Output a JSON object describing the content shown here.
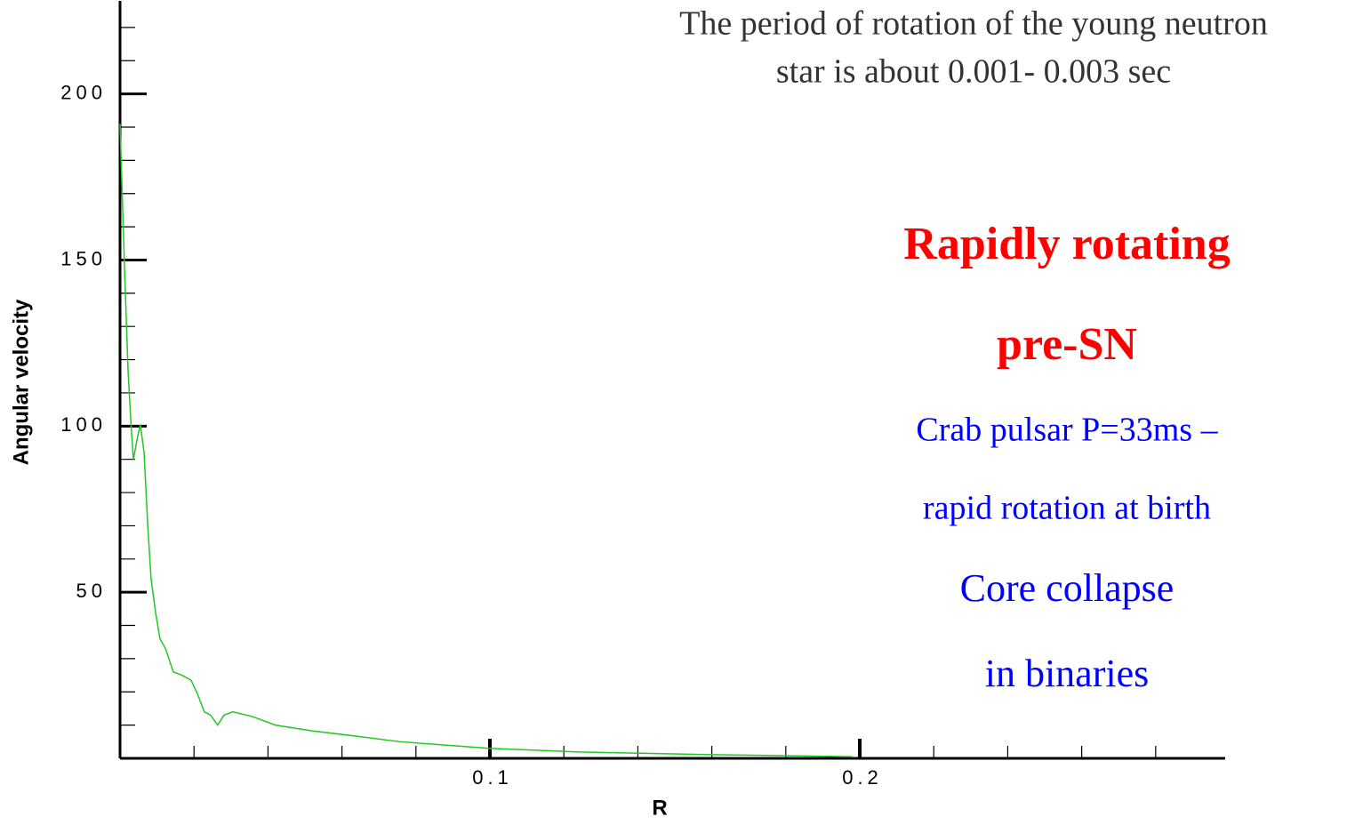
{
  "chart_data": {
    "type": "line",
    "xlabel": "R",
    "ylabel": "Angular velocity",
    "x": [
      0,
      0.0012,
      0.0022,
      0.003,
      0.0036,
      0.0048,
      0.0055,
      0.0065,
      0.0075,
      0.0084,
      0.0096,
      0.0108,
      0.0123,
      0.0144,
      0.0168,
      0.0192,
      0.0209,
      0.0228,
      0.0245,
      0.0264,
      0.0281,
      0.0305,
      0.036,
      0.042,
      0.0517,
      0.0637,
      0.0757,
      0.0998,
      0.124,
      0.16,
      0.198
    ],
    "series": [
      {
        "color": "#22c822",
        "values": [
          191,
          148,
          116,
          100,
          90,
          97,
          100.5,
          92,
          70,
          54,
          44,
          36,
          33,
          26,
          25,
          23.5,
          19.5,
          14,
          13,
          10,
          13,
          14,
          12.5,
          10,
          8.3,
          6.7,
          5,
          3,
          1.9,
          1.1,
          0.5
        ]
      }
    ],
    "xlim": [
      0,
      0.3
    ],
    "ylim": [
      0,
      228
    ],
    "xticks": [
      0.1,
      0.2
    ],
    "yticks": [
      50,
      100,
      150,
      200
    ],
    "xminorticks": [
      0.02,
      0.04,
      0.06,
      0.08,
      0.12,
      0.14,
      0.16,
      0.18,
      0.22,
      0.24,
      0.26,
      0.28
    ],
    "yminorticks": [
      10,
      20,
      30,
      40,
      60,
      70,
      80,
      90,
      110,
      120,
      130,
      140,
      160,
      170,
      180,
      190,
      210,
      220
    ],
    "annotations": {
      "note_line1": "The period of rotation of the young neutron",
      "note_line2": "star is about 0.001- 0.003 sec",
      "heading_line1": "Rapidly rotating",
      "heading_line2": "pre-SN",
      "crab_line1": "Crab pulsar P=33ms –",
      "crab_line2": "rapid rotation at birth",
      "core_line1": "Core collapse",
      "core_line2": "in binaries"
    }
  }
}
